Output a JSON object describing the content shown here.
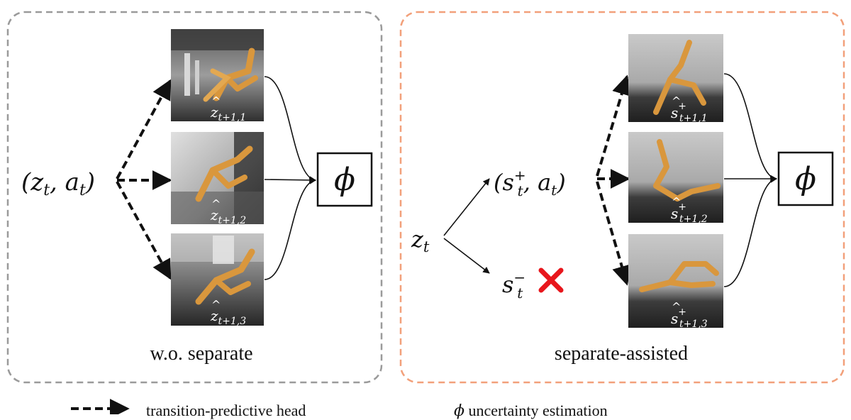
{
  "left_panel": {
    "input": "(z",
    "input_sub": "t",
    "input_comma": ", a",
    "input_sub2": "t",
    "input_close": ")",
    "caption": "w.o. separate",
    "outputs": [
      {
        "hat": "z",
        "sub": "t+1,1"
      },
      {
        "hat": "z",
        "sub": "t+1,2"
      },
      {
        "hat": "z",
        "sub": "t+1,3"
      }
    ]
  },
  "right_panel": {
    "z": "z",
    "z_sub": "t",
    "plus_pair": "(s",
    "plus_sup": "+",
    "plus_sub": "t",
    "plus_rest": ", a",
    "plus_rest_sub": "t",
    "plus_close": ")",
    "minus": "s",
    "minus_sup": "−",
    "minus_sub": "t",
    "caption": "separate-assisted",
    "outputs": [
      {
        "hat": "s",
        "sup": "+",
        "sub": "t+1,1"
      },
      {
        "hat": "s",
        "sup": "+",
        "sub": "t+1,2"
      },
      {
        "hat": "s",
        "sup": "+",
        "sub": "t+1,3"
      }
    ]
  },
  "phi_symbol": "ϕ",
  "legend": {
    "arrow_label": "transition-predictive head",
    "phi_label": "uncertainty estimation",
    "phi_symbol": "ϕ"
  },
  "colors": {
    "left_border": "#9a9a9a",
    "right_border": "#f2a07a",
    "cross": "#e8161c",
    "agent": "#d9973d"
  }
}
